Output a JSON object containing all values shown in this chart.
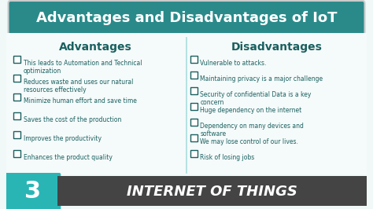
{
  "title": "Advantages and Disadvantages of IoT",
  "title_bg": "#2a8a8a",
  "title_color": "#ffffff",
  "col_left_header": "Advantages",
  "col_right_header": "Disadvantages",
  "header_color": "#1a6060",
  "body_bg": "#f0f8f8",
  "text_color": "#1a6060",
  "advantages": [
    "This leads to Automation and Technical\n  optimization",
    "Reduces waste and uses our natural\n  resources effectively",
    "Minimize human effort and save time",
    "Saves the cost of the production",
    "Improves the productivity",
    "Enhances the product quality"
  ],
  "disadvantages": [
    "Vulnerable to attacks.",
    "Maintaining privacy is a major challenge",
    "Security of confidential Data is a key\n  concern",
    "Huge dependency on the internet",
    "Dependency on many devices and\n  software",
    "We may lose control of our lives.",
    "Risk of losing jobs"
  ],
  "footer_left_num": "3",
  "footer_text": "INTERNET OF THINGS",
  "footer_bg": "#3ab0b0",
  "footer_num_bg": "#29a0a0",
  "footer_text_bg": "#555555"
}
